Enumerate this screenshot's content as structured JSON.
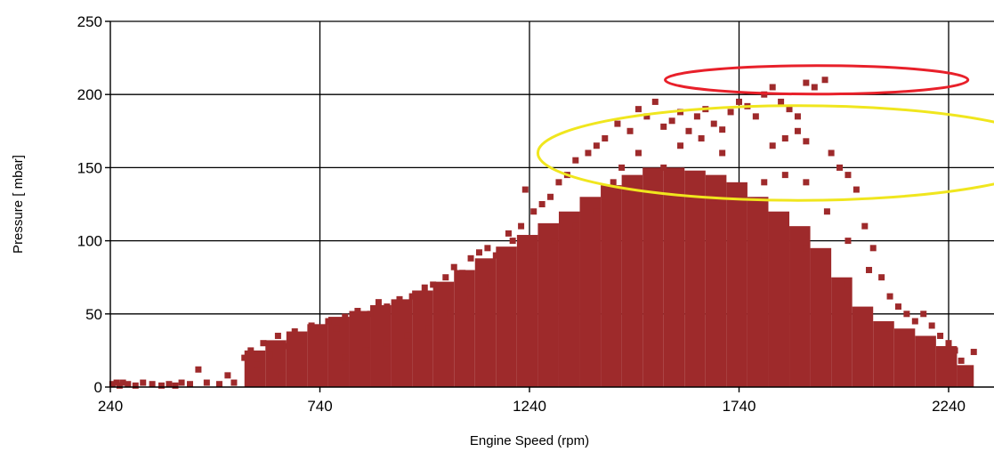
{
  "chart_data": {
    "type": "scatter",
    "title": "",
    "xlabel": "Engine Speed (rpm)",
    "ylabel": "Pressure [ mbar]",
    "xlim": [
      240,
      2240
    ],
    "ylim": [
      0,
      250
    ],
    "x_ticks": [
      240,
      740,
      1240,
      1740,
      2240
    ],
    "y_ticks": [
      0,
      50,
      100,
      150,
      200,
      250
    ],
    "grid": true,
    "legend": "none",
    "colors": {
      "points": "#9e2a2b",
      "annotation_red": "#e8202a",
      "annotation_yellow": "#f0e61e"
    },
    "series": [
      {
        "color": "#9e2a2b",
        "points": [
          [
            245,
            2
          ],
          [
            255,
            3
          ],
          [
            262,
            1
          ],
          [
            270,
            3
          ],
          [
            282,
            2
          ],
          [
            300,
            1
          ],
          [
            318,
            3
          ],
          [
            340,
            2
          ],
          [
            362,
            1
          ],
          [
            380,
            2
          ],
          [
            395,
            1
          ],
          [
            410,
            3
          ],
          [
            430,
            2
          ],
          [
            450,
            12
          ],
          [
            470,
            3
          ],
          [
            500,
            2
          ],
          [
            520,
            8
          ],
          [
            535,
            3
          ],
          [
            560,
            20
          ],
          [
            575,
            25
          ],
          [
            590,
            15
          ],
          [
            605,
            30
          ],
          [
            620,
            22
          ],
          [
            640,
            35
          ],
          [
            660,
            28
          ],
          [
            680,
            38
          ],
          [
            700,
            32
          ],
          [
            720,
            42
          ],
          [
            740,
            38
          ],
          [
            760,
            45
          ],
          [
            780,
            40
          ],
          [
            800,
            48
          ],
          [
            830,
            52
          ],
          [
            860,
            50
          ],
          [
            880,
            58
          ],
          [
            900,
            55
          ],
          [
            930,
            60
          ],
          [
            960,
            62
          ],
          [
            990,
            68
          ],
          [
            1010,
            70
          ],
          [
            1040,
            75
          ],
          [
            1060,
            82
          ],
          [
            1080,
            78
          ],
          [
            1100,
            88
          ],
          [
            1120,
            92
          ],
          [
            1140,
            95
          ],
          [
            1160,
            90
          ],
          [
            1190,
            105
          ],
          [
            1200,
            100
          ],
          [
            1220,
            110
          ],
          [
            1230,
            135
          ],
          [
            1250,
            120
          ],
          [
            1270,
            125
          ],
          [
            1290,
            130
          ],
          [
            1310,
            140
          ],
          [
            1330,
            145
          ],
          [
            1350,
            155
          ],
          [
            1380,
            160
          ],
          [
            1400,
            165
          ],
          [
            1420,
            170
          ],
          [
            1450,
            180
          ],
          [
            1480,
            175
          ],
          [
            1500,
            190
          ],
          [
            1520,
            185
          ],
          [
            1540,
            195
          ],
          [
            1560,
            178
          ],
          [
            1580,
            182
          ],
          [
            1600,
            188
          ],
          [
            1620,
            175
          ],
          [
            1640,
            185
          ],
          [
            1660,
            190
          ],
          [
            1680,
            180
          ],
          [
            1700,
            176
          ],
          [
            1720,
            188
          ],
          [
            1740,
            195
          ],
          [
            1760,
            192
          ],
          [
            1780,
            185
          ],
          [
            1800,
            200
          ],
          [
            1820,
            205
          ],
          [
            1840,
            195
          ],
          [
            1860,
            190
          ],
          [
            1880,
            185
          ],
          [
            1900,
            208
          ],
          [
            1920,
            205
          ],
          [
            1945,
            210
          ],
          [
            1960,
            160
          ],
          [
            1980,
            150
          ],
          [
            2000,
            145
          ],
          [
            2020,
            135
          ],
          [
            2040,
            110
          ],
          [
            2060,
            95
          ],
          [
            2080,
            75
          ],
          [
            2100,
            62
          ],
          [
            2120,
            55
          ],
          [
            2140,
            50
          ],
          [
            2160,
            45
          ],
          [
            2180,
            50
          ],
          [
            2200,
            42
          ],
          [
            2220,
            35
          ],
          [
            2240,
            30
          ],
          [
            2255,
            25
          ],
          [
            2270,
            18
          ],
          [
            2290,
            12
          ],
          [
            2300,
            24
          ],
          [
            1820,
            165
          ],
          [
            1850,
            170
          ],
          [
            1880,
            175
          ],
          [
            1900,
            168
          ],
          [
            1700,
            160
          ],
          [
            1650,
            170
          ],
          [
            1600,
            165
          ],
          [
            1560,
            150
          ],
          [
            1500,
            160
          ],
          [
            1460,
            150
          ],
          [
            1440,
            140
          ],
          [
            1420,
            130
          ],
          [
            1400,
            120
          ],
          [
            1350,
            110
          ],
          [
            1300,
            100
          ],
          [
            1250,
            90
          ],
          [
            1200,
            80
          ],
          [
            1150,
            70
          ],
          [
            1100,
            60
          ],
          [
            1050,
            50
          ],
          [
            1000,
            40
          ],
          [
            950,
            35
          ],
          [
            900,
            30
          ],
          [
            850,
            25
          ],
          [
            800,
            20
          ],
          [
            750,
            15
          ],
          [
            700,
            10
          ],
          [
            650,
            8
          ],
          [
            600,
            5
          ],
          [
            1700,
            120
          ],
          [
            1750,
            130
          ],
          [
            1800,
            140
          ],
          [
            1850,
            145
          ],
          [
            1900,
            140
          ],
          [
            1950,
            120
          ],
          [
            2000,
            100
          ],
          [
            2050,
            80
          ],
          [
            1700,
            80
          ],
          [
            1800,
            90
          ],
          [
            1900,
            95
          ],
          [
            2000,
            70
          ],
          [
            2100,
            40
          ],
          [
            2150,
            30
          ],
          [
            2200,
            20
          ]
        ]
      }
    ],
    "bands": [
      [
        560,
        610,
        0,
        25
      ],
      [
        610,
        660,
        0,
        32
      ],
      [
        660,
        710,
        0,
        38
      ],
      [
        710,
        760,
        0,
        43
      ],
      [
        760,
        810,
        0,
        48
      ],
      [
        810,
        860,
        0,
        52
      ],
      [
        860,
        910,
        0,
        56
      ],
      [
        910,
        960,
        0,
        60
      ],
      [
        960,
        1010,
        0,
        66
      ],
      [
        1010,
        1060,
        0,
        72
      ],
      [
        1060,
        1110,
        0,
        80
      ],
      [
        1110,
        1160,
        0,
        88
      ],
      [
        1160,
        1210,
        0,
        96
      ],
      [
        1210,
        1260,
        0,
        104
      ],
      [
        1260,
        1310,
        0,
        112
      ],
      [
        1310,
        1360,
        0,
        120
      ],
      [
        1360,
        1410,
        0,
        130
      ],
      [
        1410,
        1460,
        0,
        138
      ],
      [
        1460,
        1510,
        0,
        145
      ],
      [
        1510,
        1560,
        0,
        150
      ],
      [
        1560,
        1610,
        0,
        150
      ],
      [
        1610,
        1660,
        0,
        148
      ],
      [
        1660,
        1710,
        0,
        145
      ],
      [
        1710,
        1760,
        0,
        140
      ],
      [
        1760,
        1810,
        0,
        130
      ],
      [
        1810,
        1860,
        0,
        120
      ],
      [
        1860,
        1910,
        0,
        110
      ],
      [
        1910,
        1960,
        0,
        95
      ],
      [
        1960,
        2010,
        0,
        75
      ],
      [
        2010,
        2060,
        0,
        55
      ],
      [
        2060,
        2110,
        0,
        45
      ],
      [
        2110,
        2160,
        0,
        40
      ],
      [
        2160,
        2210,
        0,
        35
      ],
      [
        2210,
        2260,
        0,
        28
      ],
      [
        2260,
        2300,
        0,
        15
      ]
    ]
  }
}
